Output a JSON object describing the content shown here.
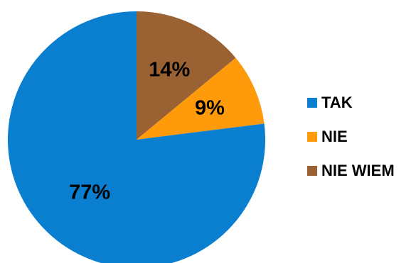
{
  "chart_data": {
    "type": "pie",
    "title": "",
    "slices": [
      {
        "label": "TAK",
        "value": 77,
        "display": "77%",
        "color": "#0a7fd0"
      },
      {
        "label": "NIE",
        "value": 9,
        "display": "9%",
        "color": "#ff9a0a"
      },
      {
        "label": "NIE WIEM",
        "value": 14,
        "display": "14%",
        "color": "#9a6133"
      }
    ],
    "start_angle_deg": 0,
    "direction": "clockwise",
    "legend_position": "right"
  }
}
